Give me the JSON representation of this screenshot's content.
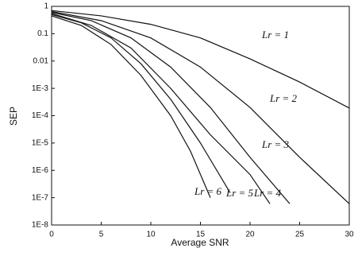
{
  "chart_data": {
    "type": "line",
    "x_label": "Average SNR",
    "y_label": "SEP",
    "xlim": [
      0,
      30
    ],
    "xticks": [
      0,
      5,
      10,
      15,
      20,
      25,
      30
    ],
    "ylim": [
      1e-08,
      1
    ],
    "log_y": true,
    "yticks": [
      1,
      0.1,
      0.01,
      {
        "value": 0.001,
        "label": "1E-3"
      },
      {
        "value": 0.0001,
        "label": "1E-4"
      },
      {
        "value": 1e-05,
        "label": "1E-5"
      },
      {
        "value": 1e-06,
        "label": "1E-6"
      },
      {
        "value": 1e-07,
        "label": "1E-7"
      },
      {
        "value": 1e-08,
        "label": "1E-8"
      }
    ],
    "series": [
      {
        "name": "Lr = 1",
        "color": "#111111",
        "x": [
          0,
          5,
          10,
          15,
          20,
          25,
          30
        ],
        "values": [
          0.7,
          0.45,
          0.22,
          0.07,
          0.012,
          0.0017,
          0.00019
        ]
      },
      {
        "name": "Lr = 2",
        "color": "#111111",
        "x": [
          0,
          5,
          10,
          15,
          20,
          25,
          30
        ],
        "values": [
          0.65,
          0.3,
          0.07,
          0.006,
          0.0002,
          3e-06,
          6e-08
        ]
      },
      {
        "name": "Lr = 3",
        "color": "#111111",
        "x": [
          0,
          4,
          8,
          12,
          16,
          20,
          24
        ],
        "values": [
          0.6,
          0.3,
          0.07,
          0.006,
          0.0002,
          3e-06,
          6e-08
        ]
      },
      {
        "name": "Lr = 4",
        "color": "#111111",
        "x": [
          0,
          4,
          8,
          12,
          16,
          20,
          22
        ],
        "values": [
          0.55,
          0.2,
          0.03,
          0.001,
          2e-05,
          7e-07,
          6e-08
        ]
      },
      {
        "name": "Lr = 5",
        "color": "#111111",
        "x": [
          0,
          3,
          6,
          9,
          12,
          15,
          18
        ],
        "values": [
          0.5,
          0.25,
          0.07,
          0.008,
          0.0004,
          1e-05,
          1.5e-07
        ]
      },
      {
        "name": "Lr = 6",
        "color": "#111111",
        "x": [
          0,
          3,
          6,
          9,
          12,
          14,
          16
        ],
        "values": [
          0.45,
          0.2,
          0.04,
          0.003,
          0.0001,
          5e-06,
          1e-07
        ]
      }
    ]
  }
}
